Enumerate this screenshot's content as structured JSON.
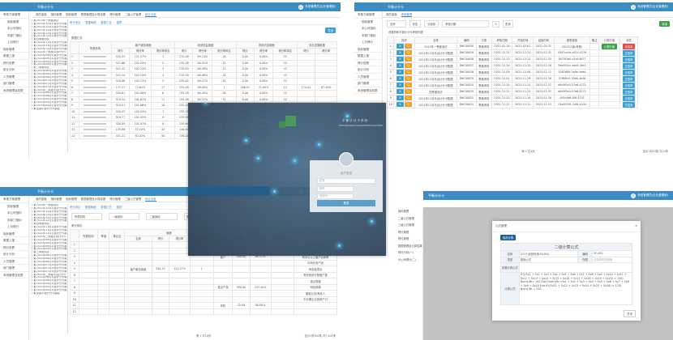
{
  "app": {
    "logo": "平衡计分卡",
    "user": "系统管理员(企业管理部)"
  },
  "sidebar": [
    "考核方案管理",
    "指标管理",
    "数据上报",
    "得分查看",
    "统计分析",
    "人员管理",
    "部门管理",
    "系统管理及权限"
  ],
  "sidebar_sub": [
    "指标管理",
    "本公司指标",
    "本部门指标",
    "上月得分"
  ],
  "tree": [
    "2022年一季度测试",
    "2021年12月平台计分卡数据",
    "2021年12月平台计分卡数据",
    "2021年12月平台计分卡数据",
    "2021年12月平台计分卡数据",
    "2021年12月平台计分卡数据",
    "四季度测试",
    "2021年11月平台计分卡数据",
    "2021年11月平台计分卡数据",
    "2021年11月平台计分卡数据",
    "2021年三季度平台计分卡",
    "2021年09月平台计分卡数据",
    "2021年09月平台计分卡数据",
    "2021年09月平台计分卡数据",
    "2021年09月平台计分卡数据",
    "三季度测试",
    "2021年08月平台计分卡数据",
    "2021年08月平台计分卡数据",
    "2021年08月平台计分卡数据",
    "2021年07月平台计分卡数据",
    "2021年07月平台计分卡数据",
    "2021年07月平台计分卡数据",
    "2021年二季度平台计分卡",
    "2021年06月平台计分卡数据",
    "2021年06月平台计分卡数据",
    "2021年05月平台计分卡数据",
    "2021年05月平台计分卡数据",
    "2021年04月平台计分卡数据",
    "全部平台计分卡数据"
  ],
  "tl": {
    "tabs": [
      "我的桌面",
      "指标管理",
      "指标管理",
      "数据管理及计算结果",
      "得分管理",
      "二级公式管理",
      "统计分析"
    ],
    "subtabs": [
      "考分排名",
      "数据明细",
      "数据汇总",
      "图表"
    ],
    "export": "导出",
    "section": "数据汇总",
    "groups": [
      "客户服务维度",
      "经营效益维度",
      "风险内控维度",
      "成长发展维度"
    ],
    "org": "所属机构",
    "cols": [
      "得分",
      "得分率",
      "得分率排名"
    ],
    "rows": [
      [
        "1",
        "520.33",
        "121.57%",
        "1",
        "272.00",
        "69.74%",
        "16",
        "0.00",
        "0.00%",
        "52",
        "",
        ""
      ],
      [
        "2",
        "521.68",
        "102.29%",
        "2",
        "235.98",
        "60.51%",
        "22",
        "0.00",
        "0.00%",
        "52",
        "",
        ""
      ],
      [
        "3",
        "521.42",
        "102.24%",
        "3",
        "235.93",
        "60.49%",
        "23",
        "0.00",
        "0.00%",
        "52",
        "",
        ""
      ],
      [
        "4",
        "521.14",
        "102.19%",
        "4",
        "235.90",
        "60.48%",
        "24",
        "0.00",
        "0.00%",
        "52",
        "",
        ""
      ],
      [
        "5",
        "520.86",
        "102.13%",
        "5",
        "235.82",
        "60.47%",
        "25",
        "0.00",
        "0.00%",
        "52",
        "",
        ""
      ],
      [
        "6",
        "177.17",
        "72.61%",
        "17",
        "222.58",
        "98.05%",
        "1",
        "248.51",
        "71.00%",
        "12",
        "174.41",
        "87.44%"
      ],
      [
        "7",
        "520.61",
        "102.08%",
        "6",
        "235.76",
        "60.45%",
        "26",
        "0.00",
        "0.00%",
        "52",
        "",
        ""
      ],
      [
        "8",
        "519.24",
        "101.81%",
        "11",
        "235.46",
        "60.37%",
        "31",
        "0.00",
        "0.00%",
        "52",
        "",
        ""
      ],
      [
        "9",
        "519.51",
        "101.86%",
        "10",
        "235.52",
        "60.39%",
        "30",
        "0.00",
        "0.00%",
        "52",
        "",
        ""
      ],
      [
        "10",
        "520.33",
        "102.03%",
        "7",
        "235.70",
        "60.44%",
        "27",
        "0.00",
        "0.00%",
        "52",
        "",
        ""
      ],
      [
        "11",
        "519.77",
        "101.92%",
        "9",
        "235.58",
        "60.41%",
        "29",
        "0.00",
        "0.00%",
        "52",
        "",
        ""
      ],
      [
        "12",
        "520.05",
        "101.97%",
        "8",
        "235.64",
        "60.42%",
        "28",
        "0.00",
        "0.00%",
        "52",
        "",
        ""
      ],
      [
        "13",
        "135.88",
        "57.10%",
        "42",
        "146.90",
        "35.15%",
        "8",
        "225.33",
        "64.38%",
        "29",
        "239.19",
        "103.99%"
      ],
      [
        "14",
        "521.21",
        "92.02%",
        "50",
        "136.21",
        "37.29%",
        "52",
        "234.96",
        "67.13%",
        "22",
        "238.65",
        "102.65%"
      ]
    ]
  },
  "tr": {
    "tabs": [
      "我的桌面",
      "考核管理"
    ],
    "filters": [
      "名称",
      "状态",
      "请选择",
      "考核日期"
    ],
    "search": "查询",
    "add": "新增",
    "caption": "设置的和平衡计分卡考核列表",
    "cols": [
      "",
      "操作",
      "名称",
      "编码",
      "分类",
      "考核日期",
      "开始时间",
      "结束时间",
      "报表链接",
      "备注",
      "计算方案",
      "状态"
    ],
    "calc": "计算方案",
    "status_on": "已发布",
    "status_off": "未发布",
    "rows": [
      [
        "1",
        "2022年一季度测试",
        "BNC00030",
        "季度考核",
        "2022-02-28",
        "2022-03-01",
        "2022-03-31",
        "2022Q1版(考核)"
      ],
      [
        "2",
        "2021年12月平台计分卡数据",
        "BNC00029",
        "季度考核",
        "2021-12-31",
        "2021-12-31",
        "2021-12-31",
        "4597ca4a-c825-4276"
      ],
      [
        "3",
        "2021年12月平台计分卡数据",
        "BNC00028",
        "季度考核",
        "2021-12-23",
        "2021-12-22",
        "2021-12-25",
        "8075f3e0-c5af-4677"
      ],
      [
        "4",
        "2021年12月平台计分卡数据",
        "BNC00027",
        "季度考核",
        "2021-12-16",
        "2021-12-15",
        "2021-12-18",
        "39e491cc-aed5-49c1"
      ],
      [
        "5",
        "2021年12月平台计分卡数据",
        "BNC00026",
        "季度考核",
        "2021-12-09",
        "2021-12-08",
        "2021-12-11",
        "0382689-3a0e-4ddd"
      ],
      [
        "6",
        "2021年12月平台计分卡数据",
        "BNC00025",
        "季度考核",
        "2021-12-01",
        "2021-11-29",
        "2021-11-28",
        "37f60fc5-30e6-4e56"
      ],
      [
        "7",
        "2021年11月平台计分卡数据",
        "BNC00024",
        "季度考核",
        "2021-11-25",
        "2021-11-24",
        "2021-11-27",
        "d6d9f5c0-57e6-4271"
      ],
      [
        "8",
        "四季度测试",
        "BNC00023",
        "季度考核",
        "2021-11-22",
        "2021-11-22",
        "2021-12-31",
        "d6d9f5c0-57e6-4271"
      ],
      [
        "9",
        "2021年11月平台计分卡数据",
        "BNC00022",
        "季度考核",
        "2021-11-20",
        "2021-11-19",
        "2021-11-20",
        "495c9d6-f0ff-4731"
      ],
      [
        "10",
        "2021年11月平台计分卡数据",
        "BNC00021",
        "季度考核",
        "2021-11-12",
        "2021-11-11",
        "2021-11-13",
        "13e40291-1ef6-4444"
      ]
    ],
    "pager": "第 1 共1页",
    "total": "显示1到10条,共10条"
  },
  "bl": {
    "filters": [
      "所属机构",
      "一级指标",
      "二级指标"
    ],
    "search": "查询",
    "section": "考分排名",
    "cols": [
      "所属机构",
      "季度",
      "排名名",
      "名称",
      "得分",
      "得分率",
      "得分率排名"
    ],
    "group1": "维度",
    "group2": "一级指标",
    "cells": [
      "客户服务维度",
      "520.33",
      "121.57%",
      "1",
      "客户",
      "240.00",
      "69.57%",
      "重点产品",
      "390.00",
      "237.50%",
      "风险",
      "32.00",
      "80.00%"
    ],
    "right": [
      "有对公以上客户",
      "有效客户",
      "有对公以上客户存款率",
      "中间业务产品",
      "养老金项目",
      "有效投资分配客户数",
      "重点规模",
      "特色规模",
      "普惠业务/养老人",
      "中长期企业投资户口"
    ],
    "pager": "第 1 共10页",
    "total": "显示1到100条,共7,401条"
  },
  "br": {
    "modal_title": "公式管理",
    "save": "保存计算",
    "formula_title": "二级计算公式",
    "labels": [
      "名称",
      "编码",
      "类型",
      "所属",
      "前置计算公式",
      "计算公式"
    ],
    "values": [
      "2713 经营利润(50.0%)",
      "2F-002",
      "基础公式",
      "请选择所属维度"
    ],
    "formula": "IF(((Sx1 + Sx2 + Sx3 + Sx4 + Sx5 + Sx6 + Sx7 + Sx8 + Sx9 + Sx10 + Sx11 + Sx12 + Sx13 + Sx14 + Sx15 + Sx16 + Sx17 + Sx18 + Sx19 + Sx20) > 150) Num1/Br= 150 Else Num1/Br=Sx1 + Sx2 + Sx3 + Sx4 + Sx5 + Sx6 + Sx7 + Sx8 + Sx9 + Sx10 End IF((Sx21 + Sx22 + Sx23 + Sx24 + Sx25 + Sx26) > 120) Num1/Br = 120",
    "close": "关闭",
    "menu": [
      "指标管理",
      "二级公式管理",
      "三级公式管理",
      "得分管理",
      "得分管理",
      "数据管理及计算结果",
      "得分分析(一)",
      "分公司得分(二)"
    ]
  },
  "login": {
    "brand": "平衡计分卡系统",
    "sub": "PERFORMANCE MANAGEMENT PLATFORM",
    "welcome": "用户登录",
    "user_ph": "账号",
    "pass_ph": "密码",
    "code_ph": "验证码",
    "submit": "登录"
  }
}
